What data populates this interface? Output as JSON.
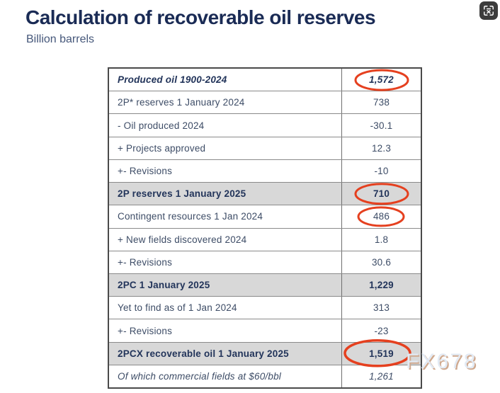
{
  "header": {
    "title": "Calculation of recoverable oil reserves",
    "subtitle": "Billion barrels"
  },
  "watermark": "FX678",
  "corner_icon": "image-translate-icon",
  "colors": {
    "title_navy": "#1a2b55",
    "text_navy": "#3d4c66",
    "row_shade_gray": "#d8d8d8",
    "circle_red": "#e5401f",
    "watermark_gray": "#e2eaf4"
  },
  "chart_data": {
    "type": "table",
    "title": "Calculation of recoverable oil reserves",
    "units": "Billion barrels",
    "columns": [
      "Item",
      "Value"
    ],
    "rows": [
      {
        "label": "Produced oil 1900-2024",
        "value": "1,572",
        "numeric": 1572,
        "style": "bold-italic",
        "shaded": false,
        "circle": "md"
      },
      {
        "label": "2P* reserves 1 January 2024",
        "value": "738",
        "numeric": 738,
        "style": "normal",
        "shaded": false,
        "circle": null
      },
      {
        "label": "- Oil produced 2024",
        "value": "-30.1",
        "numeric": -30.1,
        "style": "normal",
        "shaded": false,
        "circle": null
      },
      {
        "label": "+ Projects approved",
        "value": "12.3",
        "numeric": 12.3,
        "style": "normal",
        "shaded": false,
        "circle": null
      },
      {
        "label": "+- Revisions",
        "value": "-10",
        "numeric": -10,
        "style": "normal",
        "shaded": false,
        "circle": null
      },
      {
        "label": "2P reserves 1 January 2025",
        "value": "710",
        "numeric": 710,
        "style": "bold",
        "shaded": true,
        "circle": "md"
      },
      {
        "label": "Contingent resources 1 Jan 2024",
        "value": "486",
        "numeric": 486,
        "style": "normal",
        "shaded": false,
        "circle": "sm"
      },
      {
        "label": "+ New fields discovered 2024",
        "value": "1.8",
        "numeric": 1.8,
        "style": "normal",
        "shaded": false,
        "circle": null
      },
      {
        "label": "+- Revisions",
        "value": "30.6",
        "numeric": 30.6,
        "style": "normal",
        "shaded": false,
        "circle": null
      },
      {
        "label": "2PC 1 January 2025",
        "value": "1,229",
        "numeric": 1229,
        "style": "bold",
        "shaded": true,
        "circle": null
      },
      {
        "label": "Yet to find as of 1 Jan 2024",
        "value": "313",
        "numeric": 313,
        "style": "normal",
        "shaded": false,
        "circle": null
      },
      {
        "label": "+- Revisions",
        "value": "-23",
        "numeric": -23,
        "style": "normal",
        "shaded": false,
        "circle": null
      },
      {
        "label": "2PCX recoverable oil 1 January 2025",
        "value": "1,519",
        "numeric": 1519,
        "style": "bold",
        "shaded": true,
        "circle": "xl"
      },
      {
        "label": "Of which commercial fields at $60/bbl",
        "value": "1,261",
        "numeric": 1261,
        "style": "italic",
        "shaded": false,
        "circle": null
      }
    ]
  }
}
